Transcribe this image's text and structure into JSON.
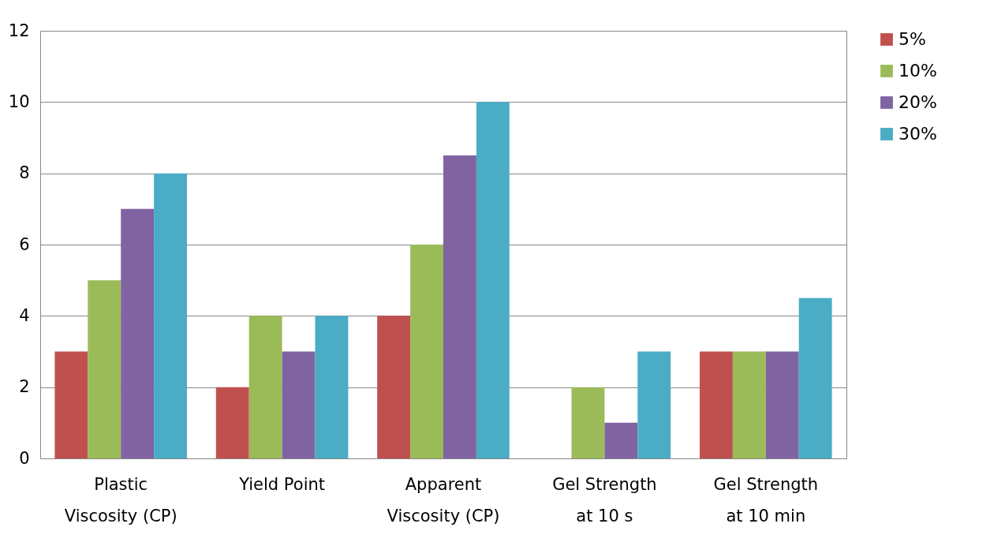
{
  "chart_data": {
    "type": "bar",
    "categories": [
      "Plastic\nViscosity (CP)",
      "Yield Point",
      "Apparent\nViscosity (CP)",
      "Gel Strength\nat 10 s",
      "Gel Strength\nat 10 min"
    ],
    "series": [
      {
        "name": "5%",
        "color": "#c0504d",
        "values": [
          3,
          2,
          4,
          0,
          3
        ]
      },
      {
        "name": "10%",
        "color": "#9bbb59",
        "values": [
          5,
          4,
          6,
          2,
          3
        ]
      },
      {
        "name": "20%",
        "color": "#8064a2",
        "values": [
          7,
          3,
          8.5,
          1,
          3
        ]
      },
      {
        "name": "30%",
        "color": "#4bacc6",
        "values": [
          8,
          4,
          10,
          3,
          4.5
        ]
      }
    ],
    "ylim": [
      0,
      12
    ],
    "yticks": [
      0,
      2,
      4,
      6,
      8,
      10,
      12
    ],
    "grid": "y",
    "legend": "right"
  }
}
